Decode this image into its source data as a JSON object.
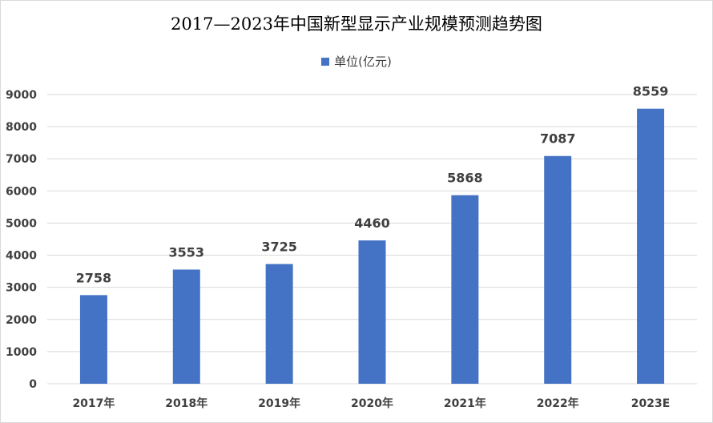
{
  "chart_data": {
    "type": "bar",
    "title": "2017—2023年中国新型显示产业规模预测趋势图",
    "categories": [
      "2017年",
      "2018年",
      "2019年",
      "2020年",
      "2021年",
      "2022年",
      "2023E"
    ],
    "series": [
      {
        "name": "单位(亿元)",
        "values": [
          2758,
          3553,
          3725,
          4460,
          5868,
          7087,
          8559
        ]
      }
    ],
    "ylim": [
      0,
      9000
    ],
    "yticks": [
      0,
      1000,
      2000,
      3000,
      4000,
      5000,
      6000,
      7000,
      8000,
      9000
    ],
    "grid": true,
    "legend": "top-center",
    "colors": {
      "bar": "#4472c4",
      "grid": "#d9d9d9"
    }
  }
}
